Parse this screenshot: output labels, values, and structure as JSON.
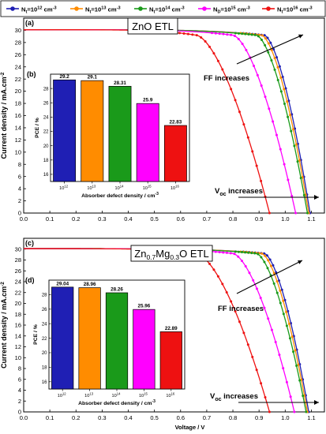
{
  "legend": {
    "entries": [
      {
        "label_prefix": "N",
        "sub": "t",
        "label_mid": "=10",
        "sup": "12",
        "label_suffix": " cm",
        "unit_sup": "-3",
        "color": "#1f1fb4",
        "marker": "circle"
      },
      {
        "label_prefix": "N",
        "sub": "t",
        "label_mid": "=10",
        "sup": "13",
        "label_suffix": " cm",
        "unit_sup": "-3",
        "color": "#ff8c00",
        "marker": "circle"
      },
      {
        "label_prefix": "N",
        "sub": "t",
        "label_mid": "=10",
        "sup": "14",
        "label_suffix": " cm",
        "unit_sup": "-3",
        "color": "#1a9a1a",
        "marker": "circle"
      },
      {
        "label_prefix": "N",
        "sub": "D",
        "label_mid": "=10",
        "sup": "15",
        "label_suffix": " cm",
        "unit_sup": "-3",
        "color": "#ff00ff",
        "marker": "circle"
      },
      {
        "label_prefix": "N",
        "sub": "t",
        "label_mid": "=10",
        "sup": "16",
        "label_suffix": " cm",
        "unit_sup": "-3",
        "color": "#ee1111",
        "marker": "circle"
      }
    ]
  },
  "chart_data": [
    {
      "type": "line",
      "panel": "(a)",
      "title": "ZnO ETL",
      "xlabel": "",
      "ylabel": "Current density / mA.cm",
      "ylabel_sup": "-2",
      "xlim": [
        0.0,
        1.15
      ],
      "ylim": [
        0,
        32
      ],
      "xticks": [
        0.0,
        0.1,
        0.2,
        0.3,
        0.4,
        0.5,
        0.6,
        0.7,
        0.8,
        0.9,
        1.0,
        1.1
      ],
      "yticks": [
        0,
        2,
        4,
        6,
        8,
        10,
        12,
        14,
        16,
        18,
        20,
        22,
        24,
        26,
        28,
        30
      ],
      "series": [
        {
          "jsc": 30.1,
          "voc": 1.095,
          "knee": 0.92,
          "color": "#1f1fb4"
        },
        {
          "jsc": 30.1,
          "voc": 1.09,
          "knee": 0.91,
          "color": "#ff8c00"
        },
        {
          "jsc": 30.1,
          "voc": 1.085,
          "knee": 0.89,
          "color": "#1a9a1a"
        },
        {
          "jsc": 30.1,
          "voc": 1.04,
          "knee": 0.8,
          "color": "#ff00ff"
        },
        {
          "jsc": 30.1,
          "voc": 0.94,
          "knee": 0.66,
          "color": "#ee1111"
        }
      ],
      "annotations": {
        "ff": "FF increases",
        "voc_prefix": "V",
        "voc_sub": "oc",
        "voc_suffix": " increases"
      }
    },
    {
      "type": "bar",
      "panel": "(b)",
      "xlabel": "Absorber defect density / cm",
      "xlabel_sup": "-3",
      "ylabel": "PCE / %",
      "ylim": [
        15,
        30
      ],
      "yticks": [
        16,
        18,
        20,
        22,
        24,
        26,
        28
      ],
      "categories": [
        {
          "base": "10",
          "sup": "12"
        },
        {
          "base": "10",
          "sup": "13"
        },
        {
          "base": "10",
          "sup": "14"
        },
        {
          "base": "10",
          "sup": "15"
        },
        {
          "base": "10",
          "sup": "16"
        }
      ],
      "values": [
        29.2,
        29.1,
        28.31,
        25.9,
        22.83
      ],
      "value_labels": [
        "29.2",
        "29.1",
        "28.31",
        "25.9",
        "22.83"
      ],
      "colors": [
        "#1f1fb4",
        "#ff8c00",
        "#1a9a1a",
        "#ff00ff",
        "#ee1111"
      ]
    },
    {
      "type": "line",
      "panel": "(c)",
      "title": {
        "p1": "Zn",
        "s1": "0.7",
        "p2": "Mg",
        "s2": "0.3",
        "p3": "O ETL"
      },
      "xlabel": "Voltage / V",
      "ylabel": "Current density / mA.cm",
      "ylabel_sup": "-2",
      "xlim": [
        0.0,
        1.15
      ],
      "ylim": [
        0,
        32
      ],
      "xticks": [
        0.0,
        0.1,
        0.2,
        0.3,
        0.4,
        0.5,
        0.6,
        0.7,
        0.8,
        0.9,
        1.0,
        1.1
      ],
      "yticks": [
        0,
        2,
        4,
        6,
        8,
        10,
        12,
        14,
        16,
        18,
        20,
        22,
        24,
        26,
        28,
        30
      ],
      "series": [
        {
          "jsc": 30.1,
          "voc": 1.09,
          "knee": 0.92,
          "color": "#1f1fb4"
        },
        {
          "jsc": 30.1,
          "voc": 1.085,
          "knee": 0.91,
          "color": "#ff8c00"
        },
        {
          "jsc": 30.1,
          "voc": 1.08,
          "knee": 0.89,
          "color": "#1a9a1a"
        },
        {
          "jsc": 30.1,
          "voc": 1.035,
          "knee": 0.8,
          "color": "#ff00ff"
        },
        {
          "jsc": 30.1,
          "voc": 0.94,
          "knee": 0.66,
          "color": "#ee1111"
        }
      ],
      "annotations": {
        "ff": "FF increases",
        "voc_prefix": "V",
        "voc_sub": "oc",
        "voc_suffix": " increases"
      }
    },
    {
      "type": "bar",
      "panel": "(d)",
      "xlabel": "Absorber defect density / cm",
      "xlabel_sup": "-3",
      "ylabel": "PCE / %",
      "ylim": [
        15,
        30
      ],
      "yticks": [
        16,
        18,
        20,
        22,
        24,
        26,
        28
      ],
      "categories": [
        {
          "base": "10",
          "sup": "12"
        },
        {
          "base": "10",
          "sup": "13"
        },
        {
          "base": "10",
          "sup": "14"
        },
        {
          "base": "10",
          "sup": "15"
        },
        {
          "base": "10",
          "sup": "16"
        }
      ],
      "values": [
        29.04,
        28.96,
        28.26,
        25.96,
        22.89
      ],
      "value_labels": [
        "29.04",
        "28.96",
        "28.26",
        "25.96",
        "22.89"
      ],
      "colors": [
        "#1f1fb4",
        "#ff8c00",
        "#1a9a1a",
        "#ff00ff",
        "#ee1111"
      ]
    }
  ]
}
